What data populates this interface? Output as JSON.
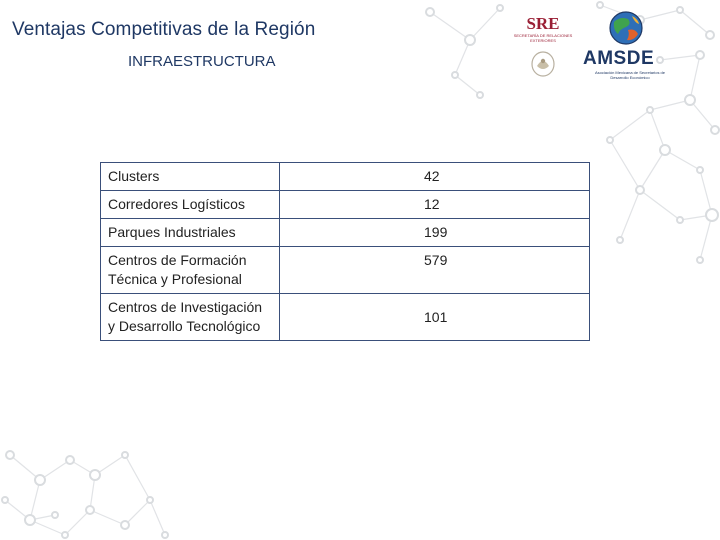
{
  "header": {
    "title": "Ventajas Competitivas de la Región",
    "subtitle": "INFRAESTRUCTURA"
  },
  "logos": {
    "sre": {
      "text": "SRE",
      "subtext": "SECRETARÍA DE RELACIONES EXTERIORES"
    },
    "amsde": {
      "text": "AMSDE",
      "subtext": "Asociación Mexicana de Secretarios de Desarrollo Económico"
    }
  },
  "table": {
    "rows": [
      {
        "label": "Clusters",
        "value": "42"
      },
      {
        "label": "Corredores Logísticos",
        "value": "12"
      },
      {
        "label": "Parques Industriales",
        "value": "199"
      },
      {
        "label": "Centros de Formación Técnica y Profesional",
        "value": "579"
      },
      {
        "label": "Centros de Investigación y Desarrollo Tecnológico",
        "value": "101"
      }
    ]
  },
  "colors": {
    "title": "#1f3864",
    "sre_brand": "#9a1f35",
    "network": "#dfe1e4",
    "table_border": "#3a4f7a"
  }
}
